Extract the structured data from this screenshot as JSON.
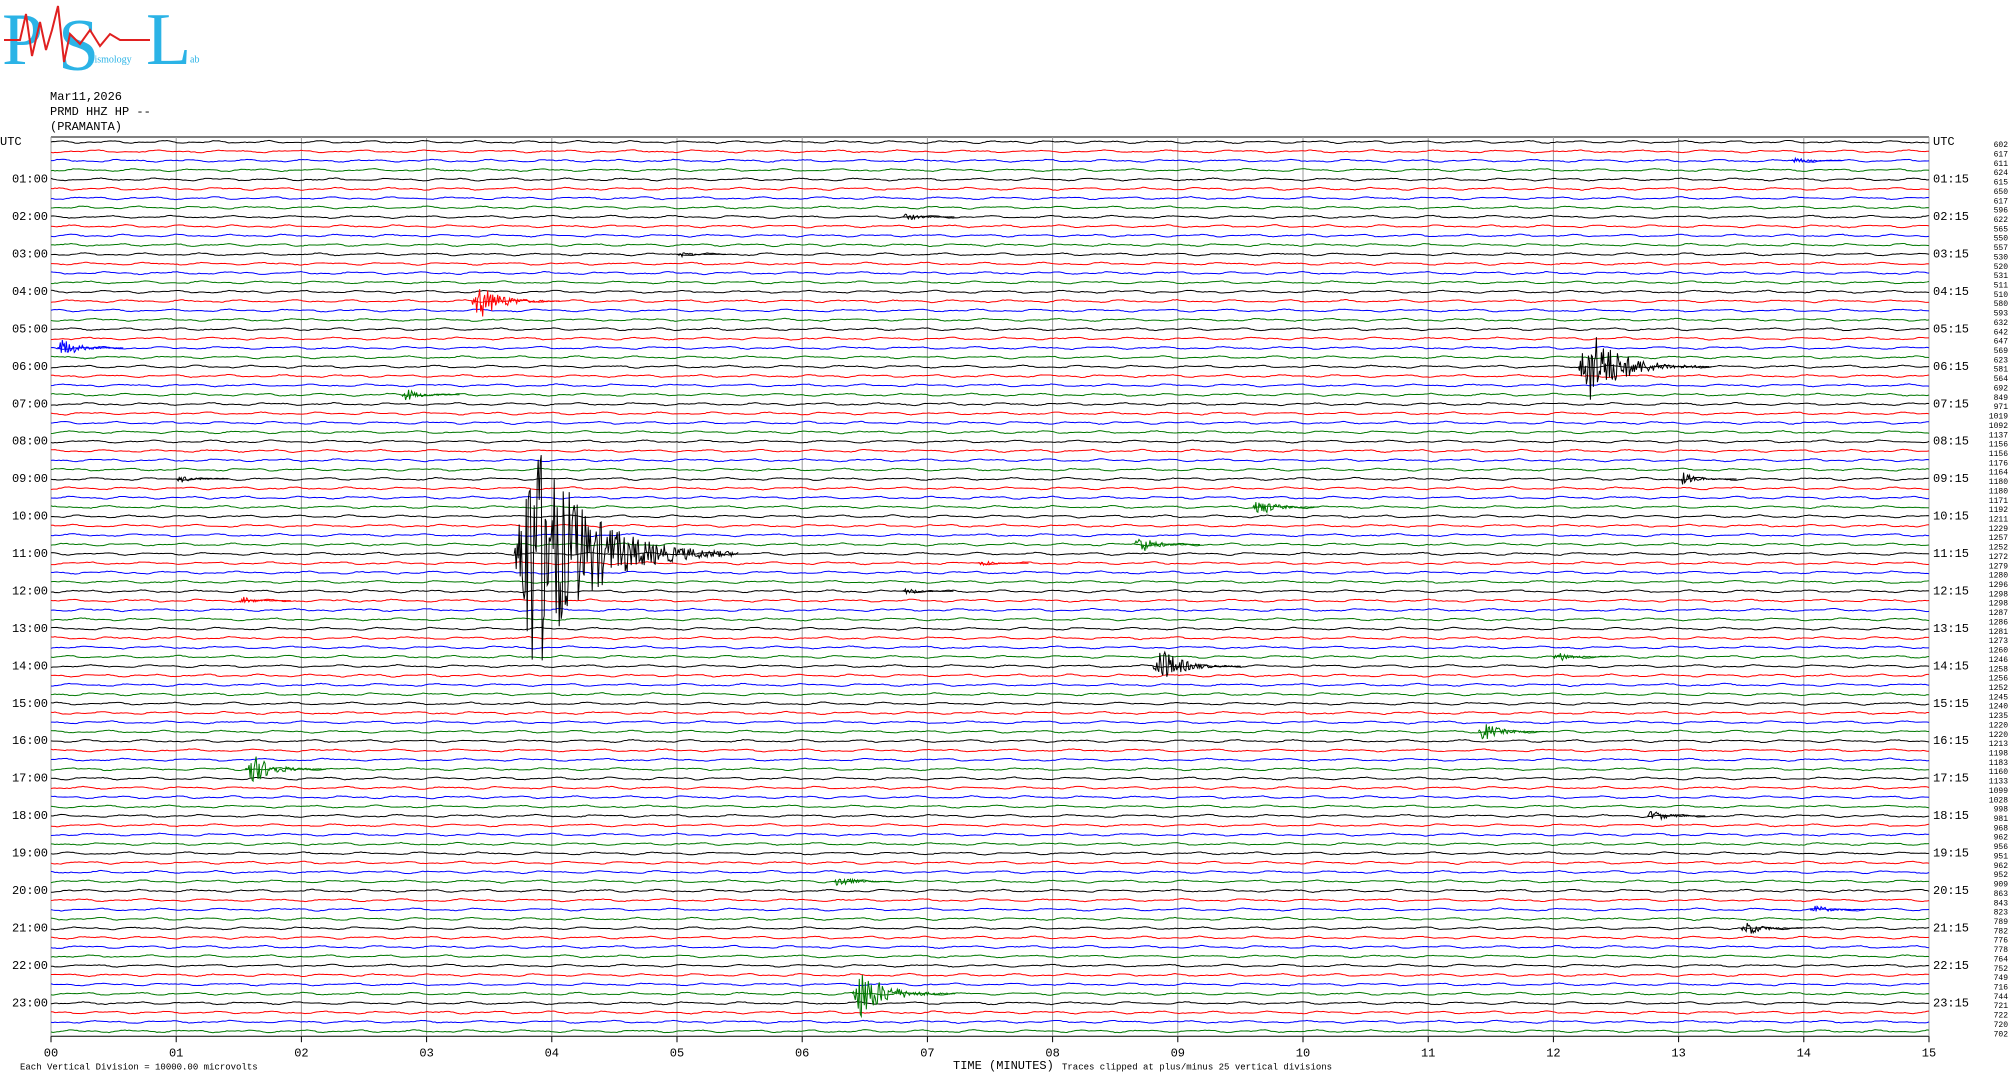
{
  "chart_data": {
    "type": "helicorder",
    "logo": {
      "letters": [
        "P",
        "S",
        "L"
      ],
      "words": [
        "eismology",
        "ab"
      ]
    },
    "header": [
      "Mar11,2026",
      "PRMD HHZ HP --",
      "(PRAMANTA)"
    ],
    "colors": [
      "#000000",
      "#ff0000",
      "#0000ff",
      "#007700"
    ],
    "left_labels": [
      "UTC",
      "01:00",
      "02:00",
      "03:00",
      "04:00",
      "05:00",
      "06:00",
      "07:00",
      "08:00",
      "09:00",
      "10:00",
      "11:00",
      "12:00",
      "13:00",
      "14:00",
      "15:00",
      "16:00",
      "17:00",
      "18:00",
      "19:00",
      "20:00",
      "21:00",
      "22:00",
      "23:00"
    ],
    "right_labels": [
      "UTC",
      "01:15",
      "02:15",
      "03:15",
      "04:15",
      "05:15",
      "06:15",
      "07:15",
      "08:15",
      "09:15",
      "10:15",
      "11:15",
      "12:15",
      "13:15",
      "14:15",
      "15:15",
      "16:15",
      "17:15",
      "18:15",
      "19:15",
      "20:15",
      "21:15",
      "22:15",
      "23:15"
    ],
    "trace_levels": [
      602,
      617,
      611,
      624,
      615,
      650,
      617,
      596,
      622,
      565,
      550,
      557,
      530,
      520,
      531,
      511,
      510,
      580,
      593,
      632,
      642,
      647,
      569,
      623,
      581,
      564,
      692,
      849,
      971,
      1019,
      1092,
      1137,
      1156,
      1156,
      1176,
      1164,
      1180,
      1180,
      1171,
      1192,
      1211,
      1229,
      1257,
      1252,
      1272,
      1279,
      1280,
      1296,
      1298,
      1298,
      1287,
      1286,
      1281,
      1273,
      1260,
      1246,
      1258,
      1256,
      1252,
      1245,
      1240,
      1235,
      1220,
      1220,
      1213,
      1198,
      1183,
      1160,
      1133,
      1099,
      1028,
      998,
      981,
      968,
      962,
      956,
      951,
      962,
      952,
      909,
      863,
      843,
      823,
      789,
      782,
      776,
      778,
      764,
      752,
      749,
      716,
      744,
      721,
      722,
      720,
      702
    ],
    "xlim": [
      0,
      15
    ],
    "xticks": [
      {
        "value": 0,
        "label": "00"
      },
      {
        "value": 1,
        "label": "01"
      },
      {
        "value": 2,
        "label": "02"
      },
      {
        "value": 3,
        "label": "03"
      },
      {
        "value": 4,
        "label": "04"
      },
      {
        "value": 5,
        "label": "05"
      },
      {
        "value": 6,
        "label": "06"
      },
      {
        "value": 7,
        "label": "07"
      },
      {
        "value": 8,
        "label": "08"
      },
      {
        "value": 9,
        "label": "09"
      },
      {
        "value": 10,
        "label": "10"
      },
      {
        "value": 11,
        "label": "11"
      },
      {
        "value": 12,
        "label": "12"
      },
      {
        "value": 13,
        "label": "13"
      },
      {
        "value": 14,
        "label": "14"
      },
      {
        "value": 15,
        "label": "15"
      }
    ],
    "xlabel": "TIME (MINUTES)",
    "footer_left": "Each Vertical Division = 10000.00 microvolts",
    "footer_right": "Traces clipped at plus/minus 25 vertical divisions",
    "grid": true,
    "events": [
      {
        "trace": 2,
        "minute": 13.9,
        "amplitude": 0.5
      },
      {
        "trace": 8,
        "minute": 6.8,
        "amplitude": 0.6
      },
      {
        "trace": 12,
        "minute": 5.0,
        "amplitude": 0.4
      },
      {
        "trace": 17,
        "minute": 3.36,
        "amplitude": 3
      },
      {
        "trace": 22,
        "minute": 0.05,
        "amplitude": 1.5
      },
      {
        "trace": 24,
        "minute": 12.2,
        "amplitude": 6
      },
      {
        "trace": 27,
        "minute": 2.8,
        "amplitude": 1
      },
      {
        "trace": 36,
        "minute": 1.0,
        "amplitude": 0.6
      },
      {
        "trace": 36,
        "minute": 13.0,
        "amplitude": 1
      },
      {
        "trace": 39,
        "minute": 9.6,
        "amplitude": 1.5
      },
      {
        "trace": 43,
        "minute": 8.65,
        "amplitude": 1.5
      },
      {
        "trace": 44,
        "minute": 3.7,
        "amplitude": 20
      },
      {
        "trace": 45,
        "minute": 7.4,
        "amplitude": 0.5
      },
      {
        "trace": 48,
        "minute": 6.8,
        "amplitude": 0.5
      },
      {
        "trace": 49,
        "minute": 1.5,
        "amplitude": 0.6
      },
      {
        "trace": 55,
        "minute": 12.0,
        "amplitude": 0.8
      },
      {
        "trace": 56,
        "minute": 8.8,
        "amplitude": 3
      },
      {
        "trace": 63,
        "minute": 11.4,
        "amplitude": 1.5
      },
      {
        "trace": 67,
        "minute": 1.55,
        "amplitude": 2.5
      },
      {
        "trace": 72,
        "minute": 12.75,
        "amplitude": 1
      },
      {
        "trace": 79,
        "minute": 6.25,
        "amplitude": 1
      },
      {
        "trace": 82,
        "minute": 14.05,
        "amplitude": 0.8
      },
      {
        "trace": 84,
        "minute": 13.5,
        "amplitude": 1.2
      },
      {
        "trace": 91,
        "minute": 6.4,
        "amplitude": 4
      }
    ]
  }
}
